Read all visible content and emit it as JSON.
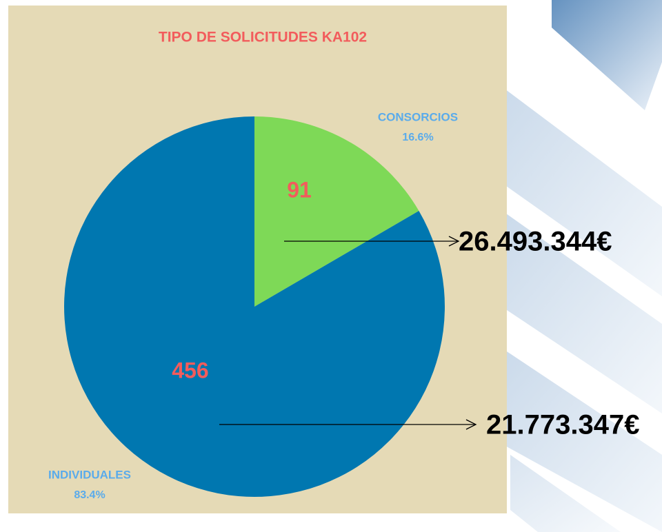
{
  "chart_data": {
    "type": "pie",
    "title": "TIPO DE SOLICITUDES KA102",
    "categories": [
      "CONSORCIOS",
      "INDIVIDUALES"
    ],
    "values": [
      91,
      456
    ],
    "percentages": [
      16.6,
      83.4
    ],
    "percentage_labels": [
      "16.6%",
      "83.4%"
    ],
    "colors": [
      "#7ed957",
      "#0077b0"
    ],
    "annotations": [
      "26.493.344€",
      "21.773.347€"
    ]
  }
}
